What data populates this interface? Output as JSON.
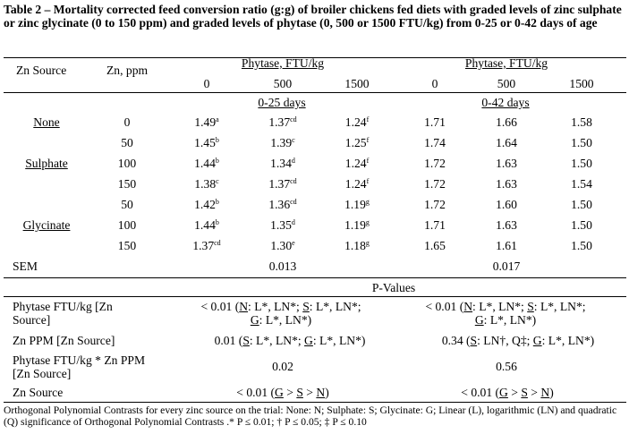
{
  "caption": "Table 2 – Mortality corrected feed conversion ratio (g:g) of broiler chickens fed diets with graded levels of zinc sulphate or zinc glycinate (0 to 150 ppm) and graded levels of phytase (0, 500 or 1500 FTU/kg) from 0-25 or 0-42 days of age",
  "header": {
    "zn_source": "Zn Source",
    "zn_ppm": "Zn, ppm",
    "phytase_label": "Phytase, FTU/kg",
    "phytase_levels": [
      "0",
      "500",
      "1500"
    ],
    "period_1": "0-25 days",
    "period_2": "0-42 days"
  },
  "groups": {
    "none": "None",
    "sulphate": "Sulphate",
    "glycinate": "Glycinate"
  },
  "rows": [
    {
      "zn": "0",
      "p25": [
        {
          "v": "1.49",
          "s": "a"
        },
        {
          "v": "1.37",
          "s": "cd"
        },
        {
          "v": "1.24",
          "s": "f"
        }
      ],
      "p42": [
        "1.71",
        "1.66",
        "1.58"
      ]
    },
    {
      "zn": "50",
      "p25": [
        {
          "v": "1.45",
          "s": "b"
        },
        {
          "v": "1.39",
          "s": "c"
        },
        {
          "v": "1.25",
          "s": "f"
        }
      ],
      "p42": [
        "1.74",
        "1.64",
        "1.50"
      ]
    },
    {
      "zn": "100",
      "p25": [
        {
          "v": "1.44",
          "s": "b"
        },
        {
          "v": "1.34",
          "s": "d"
        },
        {
          "v": "1.24",
          "s": "f"
        }
      ],
      "p42": [
        "1.72",
        "1.63",
        "1.50"
      ]
    },
    {
      "zn": "150",
      "p25": [
        {
          "v": "1.38",
          "s": "c"
        },
        {
          "v": "1.37",
          "s": "cd"
        },
        {
          "v": "1.24",
          "s": "f"
        }
      ],
      "p42": [
        "1.72",
        "1.63",
        "1.54"
      ]
    },
    {
      "zn": "50",
      "p25": [
        {
          "v": "1.42",
          "s": "b"
        },
        {
          "v": "1.36",
          "s": "cd"
        },
        {
          "v": "1.19",
          "s": "g"
        }
      ],
      "p42": [
        "1.72",
        "1.60",
        "1.50"
      ]
    },
    {
      "zn": "100",
      "p25": [
        {
          "v": "1.44",
          "s": "b"
        },
        {
          "v": "1.35",
          "s": "d"
        },
        {
          "v": "1.19",
          "s": "g"
        }
      ],
      "p42": [
        "1.71",
        "1.63",
        "1.50"
      ]
    },
    {
      "zn": "150",
      "p25": [
        {
          "v": "1.37",
          "s": "cd"
        },
        {
          "v": "1.30",
          "s": "e"
        },
        {
          "v": "1.18",
          "s": "g"
        }
      ],
      "p42": [
        "1.65",
        "1.61",
        "1.50"
      ]
    }
  ],
  "sem": {
    "label": "SEM",
    "p25": "0.013",
    "p42": "0.017"
  },
  "pvalues": {
    "heading": "P-Values",
    "rows": [
      {
        "label": "Phytase FTU/kg [Zn Source]",
        "label_lines": [
          "Phytase FTU/kg [Zn",
          "Source]"
        ],
        "p25": "< 0.01 (N: L*, LN*; S: L*, LN*; G: L*, LN*)",
        "p25_lines": [
          "< 0.01 (N: L*, LN*; S: L*, LN*;",
          "G: L*, LN*)"
        ],
        "p42": "< 0.01 (N: L*, LN*; S: L*, LN*; G: L*, LN*)",
        "p42_lines": [
          "< 0.01 (N: L*, LN*; S: L*, LN*;",
          "G: L*, LN*)"
        ]
      },
      {
        "label": "Zn PPM [Zn Source]",
        "p25": "0.01 (S: L*, LN*; G: L*, LN*)",
        "p42": "0.34 (S: LN†, Q‡; G: L*, LN*)"
      },
      {
        "label": "Phytase FTU/kg * Zn PPM [Zn Source]",
        "label_lines": [
          "Phytase FTU/kg * Zn PPM",
          "[Zn Source]"
        ],
        "p25": "0.02",
        "p42": "0.56"
      },
      {
        "label": "Zn Source",
        "p25": "< 0.01 (G > S > N)",
        "p42": "< 0.01 (G > S > N)"
      }
    ]
  },
  "footnote": "Orthogonal Polynomial Contrasts for every zinc source on the trial: None: N; Sulphate: S; Glycinate: G; Linear (L), logarithmic (LN) and quadratic (Q) significance of Orthogonal Polynomial Contrasts .* P ≤ 0.01; † P ≤ 0.05; ‡ P ≤ 0.10"
}
